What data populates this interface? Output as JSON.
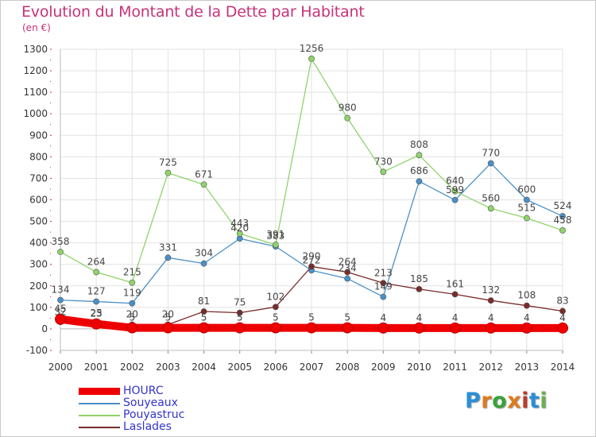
{
  "header": {
    "title": "Evolution du Montant de la Dette par Habitant",
    "unit": "(en €)"
  },
  "logo": {
    "text": "Proxiti",
    "colors": [
      "#2a8fd6",
      "#e07a1c",
      "#3aa33a",
      "#e07a1c",
      "#c0392b",
      "#2a8fd6",
      "#6ab04c"
    ]
  },
  "chart_data": {
    "type": "line",
    "title": "Evolution du Montant de la Dette par Habitant",
    "ylabel": "(en €)",
    "xlabel": "",
    "x": [
      "2000",
      "2001",
      "2002",
      "2003",
      "2004",
      "2005",
      "2006",
      "2007",
      "2008",
      "2009",
      "2010",
      "2011",
      "2012",
      "2013",
      "2014"
    ],
    "ylim": [
      -100,
      1300
    ],
    "yticks": [
      "-100",
      "0",
      "100",
      "200",
      "300",
      "400",
      "500",
      "600",
      "700",
      "800",
      "900",
      "1000",
      "1100",
      "1200",
      "1300"
    ],
    "grid": true,
    "legend_position": "bottom-left",
    "series": [
      {
        "name": "Souyeaux",
        "color": "#4a90c8",
        "values": [
          134,
          127,
          119,
          331,
          304,
          420,
          383,
          272,
          234,
          149,
          686,
          599,
          770,
          600,
          524
        ]
      },
      {
        "name": "Pouyastruc",
        "color": "#8fd46a",
        "values": [
          358,
          264,
          215,
          725,
          671,
          443,
          391,
          1256,
          980,
          730,
          808,
          640,
          560,
          515,
          458
        ]
      },
      {
        "name": "Laslades",
        "color": "#7a2b2b",
        "values": [
          32,
          25,
          20,
          20,
          81,
          75,
          102,
          290,
          264,
          213,
          185,
          161,
          132,
          108,
          83
        ]
      },
      {
        "name": "HOURC",
        "color": "#ee0000",
        "values": [
          45,
          23,
          5,
          5,
          5,
          5,
          5,
          5,
          5,
          4,
          4,
          4,
          4,
          4,
          4
        ]
      }
    ]
  }
}
